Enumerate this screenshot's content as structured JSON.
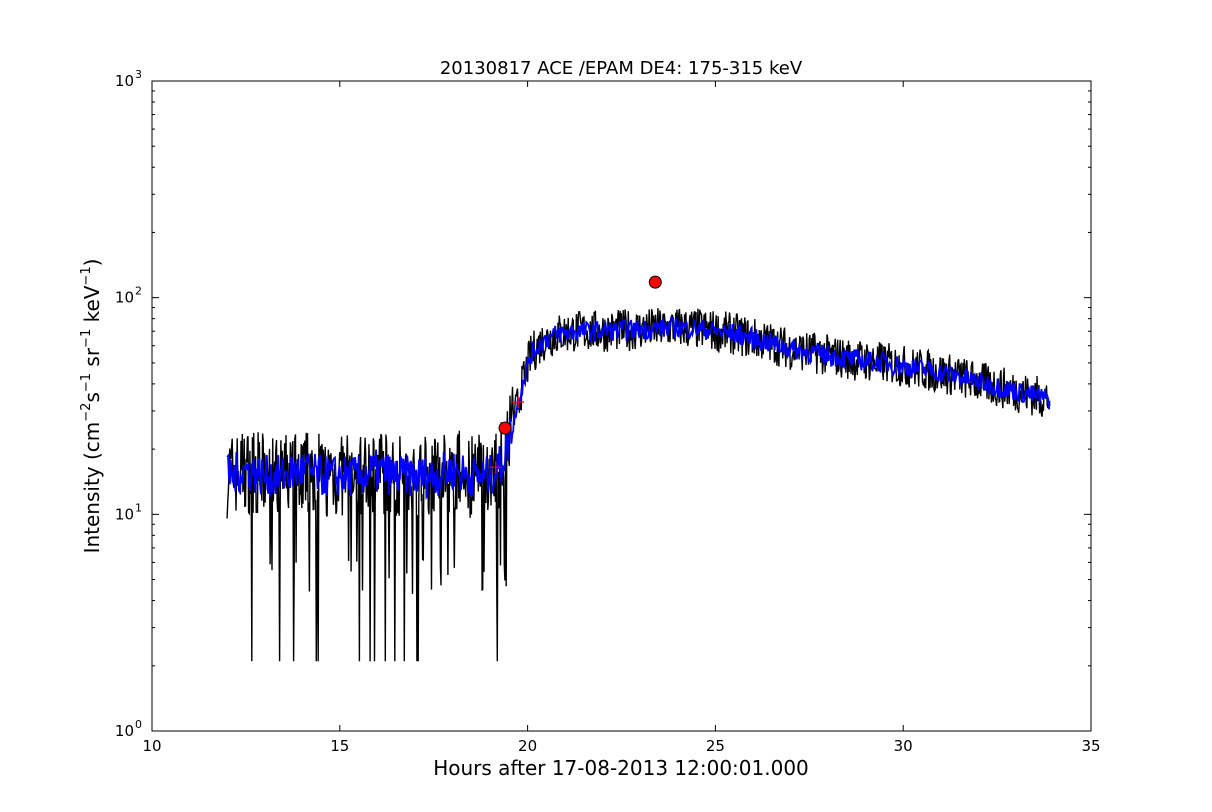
{
  "chart_data": {
    "type": "line",
    "title": "20130817 ACE /EPAM DE4: 175-315 keV",
    "xlabel": "Hours after 17-08-2013 12:00:01.000",
    "ylabel": {
      "prefix": "Intensity (cm",
      "sup1": "−2",
      "mid1": "s",
      "sup2": "−1",
      "mid2": " sr",
      "sup3": "−1",
      "mid3": " keV",
      "sup4": "−1",
      "suffix": ")"
    },
    "xlim": [
      10,
      35
    ],
    "ylim": [
      1,
      1000
    ],
    "yscale": "log",
    "grid": false,
    "xticks": [
      {
        "value": 10,
        "label": "10"
      },
      {
        "value": 15,
        "label": "15"
      },
      {
        "value": 20,
        "label": "20"
      },
      {
        "value": 25,
        "label": "25"
      },
      {
        "value": 30,
        "label": "30"
      },
      {
        "value": 35,
        "label": "35"
      }
    ],
    "yticks": [
      {
        "value": 1,
        "base": "10",
        "exp": "0"
      },
      {
        "value": 10,
        "base": "10",
        "exp": "1"
      },
      {
        "value": 100,
        "base": "10",
        "exp": "2"
      },
      {
        "value": 1000,
        "base": "10",
        "exp": "3"
      }
    ],
    "series": [
      {
        "role": "raw",
        "color": "#000000",
        "x": [
          12.0,
          12.5,
          13.0,
          13.5,
          14.0,
          14.5,
          15.0,
          15.5,
          16.0,
          16.5,
          17.0,
          17.5,
          18.0,
          18.5,
          19.0,
          19.3,
          19.5,
          19.7,
          19.9,
          20.1,
          20.4,
          20.8,
          21.3,
          22.0,
          22.7,
          23.4,
          24.0,
          24.8,
          25.5,
          26.3,
          27.0,
          27.8,
          28.6,
          29.5,
          30.4,
          31.3,
          32.2,
          33.0,
          33.9
        ],
        "y": [
          15,
          16,
          15,
          15,
          16,
          15,
          15,
          15,
          16,
          15,
          15,
          15,
          16,
          15,
          15,
          17,
          22,
          30,
          42,
          55,
          63,
          68,
          70,
          70,
          71,
          72,
          73,
          71,
          68,
          63,
          58,
          55,
          52,
          50,
          47,
          44,
          40,
          37,
          34
        ]
      },
      {
        "role": "smoothed",
        "color": "#0000ff",
        "x": [
          12.0,
          12.5,
          13.0,
          13.5,
          14.0,
          14.5,
          15.0,
          15.5,
          16.0,
          16.5,
          17.0,
          17.5,
          18.0,
          18.5,
          19.0,
          19.3,
          19.5,
          19.7,
          19.9,
          20.1,
          20.4,
          20.8,
          21.3,
          22.0,
          22.7,
          23.4,
          24.0,
          24.8,
          25.5,
          26.3,
          27.0,
          27.8,
          28.6,
          29.5,
          30.4,
          31.3,
          32.2,
          33.0,
          33.9
        ],
        "y": [
          15,
          16,
          15,
          15,
          16,
          15,
          15,
          15,
          16,
          15,
          15,
          15,
          16,
          15,
          15,
          17,
          22,
          30,
          42,
          55,
          63,
          68,
          70,
          70,
          71,
          72,
          73,
          71,
          68,
          63,
          58,
          55,
          52,
          50,
          47,
          44,
          40,
          37,
          34
        ]
      }
    ],
    "markers": [
      {
        "shape": "circle",
        "color": "#ff0000",
        "x": 23.4,
        "y": 118
      },
      {
        "shape": "circle",
        "color": "#ff0000",
        "x": 19.4,
        "y": 25
      },
      {
        "shape": "plus",
        "color": "#ff0000",
        "x": 19.15,
        "y": 16.5
      },
      {
        "shape": "plus",
        "color": "#ff0000",
        "x": 19.75,
        "y": 33
      }
    ]
  }
}
